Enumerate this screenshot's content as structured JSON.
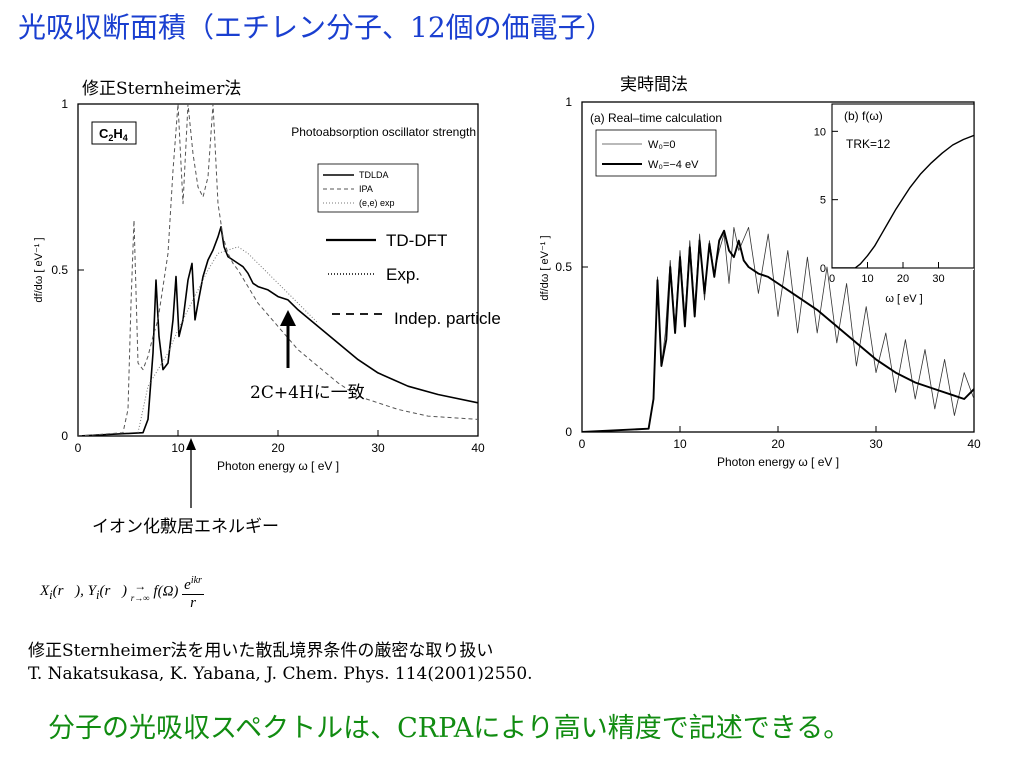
{
  "slide": {
    "title": "光吸収断面積（エチレン分子、12個の価電子）",
    "left_label": "修正Sternheimer法",
    "right_label": "実時間法",
    "annotation_match": "2C+4Hに一致",
    "annotation_ionization": "イオン化敷居エネルギー",
    "formula": "X_i(r), Y_i(r) → f(Ω) e^{ikr}/r   (r→∞)",
    "method_line": "修正Sternheimer法を用いた散乱境界条件の厳密な取り扱い",
    "citation": "T. Nakatsukasa, K. Yabana, J. Chem. Phys. 114(2001)2550.",
    "conclusion": "分子の光吸収スペクトルは、CRPAにより高い精度で記述できる。",
    "conclusion_color": "#118c11",
    "title_color": "#1a3fd0"
  },
  "slide_legend": {
    "td_dft": "TD-DFT",
    "exp": "Exp.",
    "indep": "Indep. particle"
  },
  "chart_data": [
    {
      "type": "line",
      "molecule_label": "C2H4",
      "title": "Photoabsorption oscillator strength",
      "xlabel": "Photon energy ω [ eV ]",
      "ylabel": "df/dω [ eV⁻¹ ]",
      "xlim": [
        0,
        40
      ],
      "ylim": [
        0,
        1
      ],
      "xticks": [
        0,
        10,
        20,
        30,
        40
      ],
      "yticks": [
        0,
        0.5,
        1
      ],
      "ytick_labels": [
        "0",
        "0.5",
        "1"
      ],
      "legend_position": "top-right",
      "series": [
        {
          "name": "TDLDA",
          "style": "solid",
          "x": [
            0,
            6.5,
            7.0,
            7.5,
            7.8,
            8.1,
            8.5,
            9.0,
            9.5,
            9.8,
            10.1,
            10.5,
            11.0,
            11.4,
            11.7,
            12.0,
            12.5,
            13.0,
            13.5,
            14.0,
            14.3,
            14.6,
            15.0,
            15.5,
            16.0,
            16.5,
            17.0,
            17.5,
            18.0,
            19.0,
            20.0,
            21.0,
            22.0,
            24.0,
            26.0,
            28.0,
            30.0,
            33.0,
            36.0,
            40.0
          ],
          "y": [
            0,
            0.01,
            0.05,
            0.25,
            0.47,
            0.3,
            0.2,
            0.22,
            0.35,
            0.48,
            0.3,
            0.35,
            0.47,
            0.52,
            0.35,
            0.4,
            0.48,
            0.53,
            0.56,
            0.6,
            0.63,
            0.57,
            0.54,
            0.53,
            0.52,
            0.51,
            0.49,
            0.46,
            0.45,
            0.44,
            0.42,
            0.41,
            0.38,
            0.33,
            0.28,
            0.23,
            0.19,
            0.15,
            0.125,
            0.1
          ]
        },
        {
          "name": "IPA",
          "style": "dashed",
          "x": [
            0,
            4.5,
            5.0,
            5.3,
            5.6,
            6.0,
            6.5,
            7.0,
            7.5,
            8.0,
            8.5,
            9.0,
            9.5,
            10.0,
            10.5,
            11.0,
            11.5,
            12.0,
            12.5,
            13.0,
            13.5,
            14.0,
            14.5,
            15.0,
            15.5,
            16.0,
            17.0,
            18.0,
            20.0,
            22.0,
            24.0,
            26.0,
            28.0,
            30.0,
            32.0,
            35.0,
            40.0
          ],
          "y": [
            0,
            0.01,
            0.08,
            0.4,
            0.65,
            0.22,
            0.2,
            0.24,
            0.3,
            0.35,
            0.45,
            0.55,
            0.8,
            1.0,
            0.7,
            1.0,
            0.85,
            0.75,
            0.72,
            0.78,
            1.0,
            0.7,
            0.6,
            0.55,
            0.52,
            0.5,
            0.45,
            0.4,
            0.33,
            0.26,
            0.21,
            0.16,
            0.12,
            0.1,
            0.08,
            0.06,
            0.05
          ]
        },
        {
          "name": "(e,e) exp",
          "style": "dotted",
          "x": [
            6.0,
            7.0,
            8.0,
            9.0,
            10.0,
            11.0,
            12.0,
            13.0,
            14.0,
            15.0,
            16.0,
            17.0,
            18.0,
            19.0,
            20.0,
            21.0,
            22.0,
            23.0,
            24.0
          ],
          "y": [
            0.01,
            0.15,
            0.2,
            0.25,
            0.32,
            0.38,
            0.44,
            0.5,
            0.55,
            0.56,
            0.57,
            0.55,
            0.52,
            0.49,
            0.46,
            0.43,
            0.4,
            0.37,
            0.34
          ]
        }
      ]
    },
    {
      "type": "line",
      "title": "(a) Real–time calculation",
      "xlabel": "Photon energy ω [ eV ]",
      "ylabel": "df/dω [ eV⁻¹ ]",
      "xlim": [
        0,
        40
      ],
      "ylim": [
        0,
        1
      ],
      "xticks": [
        0,
        10,
        20,
        30,
        40
      ],
      "yticks": [
        0,
        0.5,
        1
      ],
      "ytick_labels": [
        "0",
        "0.5",
        "1"
      ],
      "legend_position": "top-left",
      "series": [
        {
          "name": "W₀=0",
          "style": "thin",
          "x": [
            0,
            6.8,
            7.3,
            7.7,
            8.1,
            8.5,
            9.0,
            9.5,
            10.0,
            10.5,
            11.0,
            11.5,
            12.0,
            12.5,
            13.0,
            13.5,
            14.0,
            14.5,
            15.0,
            15.5,
            16.0,
            17.0,
            18.0,
            19.0,
            20.0,
            21.0,
            22.0,
            23.0,
            24.0,
            25.0,
            26.0,
            27.0,
            28.0,
            29.0,
            30.0,
            31.0,
            32.0,
            33.0,
            34.0,
            35.0,
            36.0,
            37.0,
            38.0,
            39.0,
            40.0
          ],
          "y": [
            0,
            0.01,
            0.1,
            0.47,
            0.2,
            0.3,
            0.52,
            0.32,
            0.55,
            0.35,
            0.58,
            0.38,
            0.6,
            0.4,
            0.58,
            0.48,
            0.55,
            0.6,
            0.45,
            0.62,
            0.55,
            0.62,
            0.42,
            0.6,
            0.35,
            0.55,
            0.3,
            0.53,
            0.3,
            0.5,
            0.27,
            0.45,
            0.2,
            0.38,
            0.18,
            0.3,
            0.12,
            0.28,
            0.1,
            0.25,
            0.07,
            0.22,
            0.05,
            0.18,
            0.1
          ]
        },
        {
          "name": "W₀=−4 eV",
          "style": "thick",
          "x": [
            0,
            6.8,
            7.3,
            7.7,
            8.1,
            8.6,
            9.0,
            9.5,
            10.0,
            10.5,
            11.0,
            11.5,
            12.0,
            12.5,
            13.0,
            13.5,
            14.0,
            14.5,
            15.0,
            15.5,
            16.0,
            16.5,
            17.0,
            18.0,
            19.0,
            20.0,
            22.0,
            24.0,
            26.0,
            28.0,
            30.0,
            32.0,
            34.0,
            36.0,
            38.0,
            39.0,
            40.0
          ],
          "y": [
            0,
            0.01,
            0.1,
            0.46,
            0.2,
            0.28,
            0.5,
            0.3,
            0.53,
            0.32,
            0.56,
            0.35,
            0.58,
            0.42,
            0.57,
            0.47,
            0.58,
            0.61,
            0.55,
            0.53,
            0.58,
            0.52,
            0.5,
            0.48,
            0.47,
            0.45,
            0.41,
            0.37,
            0.32,
            0.27,
            0.22,
            0.18,
            0.15,
            0.13,
            0.11,
            0.1,
            0.13
          ]
        }
      ]
    },
    {
      "type": "line",
      "title": "(b) f(ω)",
      "annotation": "TRK=12",
      "xlabel": "ω [ eV ]",
      "xlim": [
        0,
        40
      ],
      "ylim": [
        0,
        12
      ],
      "xticks": [
        0,
        10,
        20,
        30
      ],
      "yticks": [
        0,
        5,
        10
      ],
      "series": [
        {
          "name": "f(ω)",
          "x": [
            0,
            6.5,
            8.0,
            10.0,
            12.0,
            14.0,
            16.0,
            18.0,
            20.0,
            22.0,
            25.0,
            28.0,
            31.0,
            34.0,
            37.0,
            40.0
          ],
          "y": [
            0,
            0,
            0.3,
            0.9,
            1.6,
            2.5,
            3.4,
            4.3,
            5.1,
            5.9,
            6.9,
            7.7,
            8.4,
            9.0,
            9.4,
            9.7
          ]
        }
      ]
    }
  ]
}
